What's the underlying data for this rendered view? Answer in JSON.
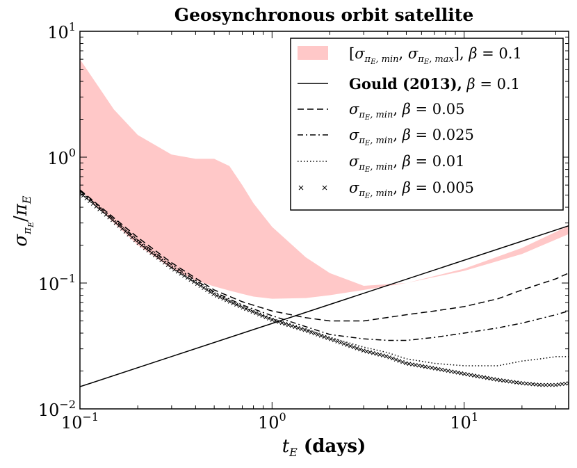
{
  "chart_data": {
    "type": "line",
    "title": "Geosynchronous orbit satellite",
    "xlabel": "t_E (days)",
    "ylabel": "σ_πE/π_E",
    "xscale": "log",
    "yscale": "log",
    "xlim": [
      0.1,
      35
    ],
    "ylim": [
      0.01,
      10
    ],
    "x_ticks": [
      {
        "base": "10",
        "exp": "−1"
      },
      {
        "base": "10",
        "exp": "0"
      },
      {
        "base": "10",
        "exp": "1"
      }
    ],
    "y_ticks": [
      {
        "base": "10",
        "exp": "−2"
      },
      {
        "base": "10",
        "exp": "−1"
      },
      {
        "base": "10",
        "exp": "0"
      },
      {
        "base": "10",
        "exp": "1"
      }
    ],
    "legend_position": "top-right",
    "band": {
      "name": "[σ_πE,min, σ_πE,max], β = 0.1",
      "color": "#ffc8c8",
      "x": [
        0.1,
        0.15,
        0.2,
        0.3,
        0.4,
        0.5,
        0.6,
        0.7,
        0.8,
        1.0,
        1.5,
        2.0,
        3.0,
        5.0,
        10.0,
        20.0,
        35.0
      ],
      "upper": [
        6.0,
        2.4,
        1.5,
        1.05,
        0.97,
        0.97,
        0.85,
        0.6,
        0.43,
        0.28,
        0.16,
        0.12,
        0.095,
        0.1,
        0.13,
        0.19,
        0.285
      ],
      "lower": [
        0.55,
        0.3,
        0.2,
        0.13,
        0.105,
        0.094,
        0.087,
        0.082,
        0.078,
        0.075,
        0.076,
        0.08,
        0.088,
        0.1,
        0.125,
        0.17,
        0.245
      ]
    },
    "series": [
      {
        "name": "Gould (2013), β = 0.1",
        "style": "solid",
        "x": [
          0.1,
          35.0
        ],
        "y": [
          0.015,
          0.285
        ]
      },
      {
        "name": "σ_πE,min, β = 0.05",
        "style": "dashed",
        "x": [
          0.1,
          0.15,
          0.2,
          0.3,
          0.5,
          0.7,
          1.0,
          1.5,
          2.0,
          3.0,
          5.0,
          7.0,
          10.0,
          15.0,
          20.0,
          30.0,
          35.0
        ],
        "y": [
          0.55,
          0.33,
          0.23,
          0.145,
          0.088,
          0.071,
          0.06,
          0.053,
          0.05,
          0.05,
          0.056,
          0.06,
          0.065,
          0.075,
          0.088,
          0.108,
          0.12
        ]
      },
      {
        "name": "σ_πE,min, β = 0.025",
        "style": "dashdot",
        "x": [
          0.1,
          0.15,
          0.2,
          0.3,
          0.5,
          0.7,
          1.0,
          1.5,
          2.0,
          3.0,
          4.0,
          5.0,
          7.0,
          10.0,
          15.0,
          20.0,
          30.0,
          35.0
        ],
        "y": [
          0.54,
          0.32,
          0.22,
          0.14,
          0.085,
          0.067,
          0.055,
          0.045,
          0.039,
          0.036,
          0.035,
          0.035,
          0.037,
          0.04,
          0.044,
          0.048,
          0.056,
          0.06
        ]
      },
      {
        "name": "σ_πE,min, β = 0.01",
        "style": "dotted",
        "x": [
          0.1,
          0.15,
          0.2,
          0.3,
          0.5,
          0.7,
          1.0,
          1.5,
          2.0,
          3.0,
          4.0,
          5.0,
          7.0,
          10.0,
          15.0,
          20.0,
          25.0,
          30.0,
          35.0
        ],
        "y": [
          0.53,
          0.31,
          0.215,
          0.135,
          0.083,
          0.065,
          0.052,
          0.043,
          0.037,
          0.031,
          0.028,
          0.025,
          0.023,
          0.022,
          0.022,
          0.024,
          0.025,
          0.026,
          0.026
        ]
      },
      {
        "name": "σ_πE,min, β = 0.005",
        "style": "x-markers",
        "x": [
          0.1,
          0.15,
          0.2,
          0.3,
          0.5,
          0.7,
          1.0,
          1.5,
          2.0,
          3.0,
          4.0,
          5.0,
          7.0,
          10.0,
          15.0,
          20.0,
          25.0,
          30.0,
          35.0
        ],
        "y": [
          0.52,
          0.31,
          0.21,
          0.132,
          0.081,
          0.064,
          0.051,
          0.042,
          0.036,
          0.029,
          0.026,
          0.023,
          0.021,
          0.019,
          0.017,
          0.016,
          0.0155,
          0.0155,
          0.016
        ]
      }
    ]
  }
}
